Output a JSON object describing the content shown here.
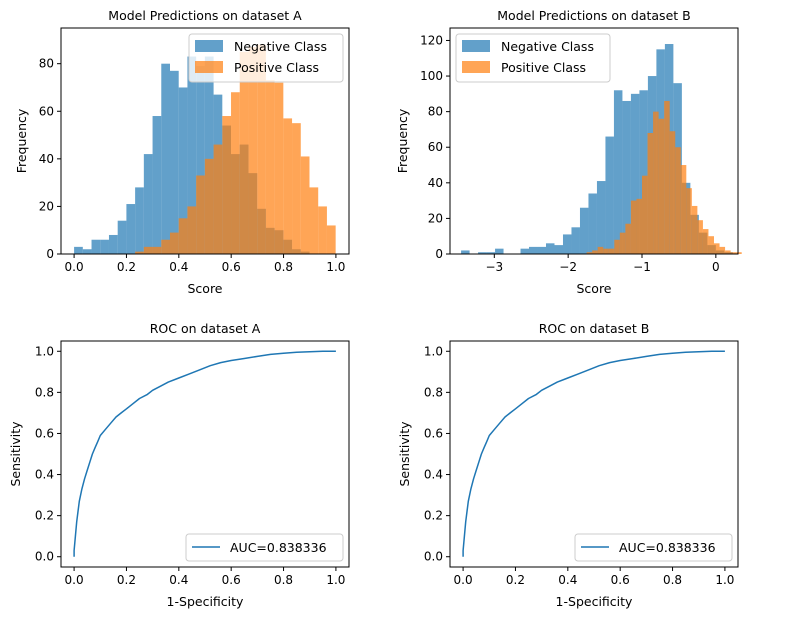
{
  "figure": {
    "background": "#ffffff"
  },
  "chart_data": [
    {
      "type": "bar",
      "title": "Model Predictions on dataset A",
      "xlabel": "Score",
      "ylabel": "Frequency",
      "xlim": [
        -0.05,
        1.05
      ],
      "ylim": [
        0,
        95
      ],
      "xticks": [
        0.0,
        0.2,
        0.4,
        0.6,
        0.8,
        1.0
      ],
      "xtick_labels": [
        "0.0",
        "0.2",
        "0.4",
        "0.6",
        "0.8",
        "1.0"
      ],
      "yticks": [
        0,
        20,
        40,
        60,
        80
      ],
      "ytick_labels": [
        "0",
        "20",
        "40",
        "60",
        "80"
      ],
      "legend_position": "top-right",
      "series": [
        {
          "name": "Negative Class",
          "color": "#1f77b4",
          "opacity": 0.7,
          "bin_start": 0.0,
          "bin_width": 0.0333,
          "values": [
            3,
            2,
            6,
            6,
            8,
            14,
            21,
            28,
            42,
            58,
            80,
            77,
            70,
            83,
            79,
            83,
            67,
            54,
            42,
            46,
            34,
            19,
            11,
            10,
            6,
            2,
            1,
            0,
            0,
            0
          ]
        },
        {
          "name": "Positive Class",
          "color": "#ff7f0e",
          "opacity": 0.7,
          "bin_start": 0.0,
          "bin_width": 0.0333,
          "values": [
            0,
            0,
            0,
            0,
            0,
            0,
            0,
            1,
            3,
            3,
            6,
            9,
            15,
            20,
            33,
            40,
            46,
            58,
            68,
            85,
            87,
            88,
            73,
            72,
            57,
            55,
            41,
            28,
            20,
            12
          ]
        },
        {
          "name": "Positive Class",
          "color": "#ff7f0e",
          "opacity": 0.7,
          "bin_start": 1.0,
          "bin_width": 0.0333,
          "values": []
        }
      ],
      "extra_series_note": ""
    },
    {
      "type": "bar",
      "title": "Model Predictions on dataset B",
      "xlabel": "Score",
      "ylabel": "Frequency",
      "xlim": [
        -3.6,
        0.3
      ],
      "ylim": [
        0,
        127
      ],
      "xticks": [
        -3,
        -2,
        -1,
        0
      ],
      "xtick_labels": [
        "−3",
        "−2",
        "−1",
        "0"
      ],
      "yticks": [
        0,
        20,
        40,
        60,
        80,
        100,
        120
      ],
      "ytick_labels": [
        "0",
        "20",
        "40",
        "60",
        "80",
        "100",
        "120"
      ],
      "legend_position": "top-left",
      "series": [
        {
          "name": "Negative Class",
          "color": "#1f77b4",
          "opacity": 0.7,
          "bin_start": -3.45,
          "bin_width": 0.115,
          "values": [
            2,
            0,
            1,
            1,
            3,
            0,
            0,
            3,
            4,
            4,
            6,
            5,
            11,
            15,
            26,
            34,
            41,
            66,
            92,
            86,
            90,
            92,
            100,
            115,
            118,
            96,
            40,
            22,
            12,
            5,
            2,
            1
          ]
        },
        {
          "name": "Positive Class",
          "color": "#ff7f0e",
          "opacity": 0.7,
          "bin_start": -1.75,
          "bin_width": 0.075,
          "values": [
            1,
            2,
            4,
            3,
            3,
            8,
            12,
            17,
            30,
            31,
            44,
            68,
            80,
            76,
            86,
            69,
            60,
            50,
            37,
            27,
            19,
            14,
            10,
            6,
            4,
            2,
            1,
            1
          ]
        }
      ]
    },
    {
      "type": "line",
      "title": "ROC on dataset A",
      "xlabel": "1-Specificity",
      "ylabel": "Sensitivity",
      "xlim": [
        -0.05,
        1.05
      ],
      "ylim": [
        -0.05,
        1.05
      ],
      "xticks": [
        0.0,
        0.2,
        0.4,
        0.6,
        0.8,
        1.0
      ],
      "xtick_labels": [
        "0.0",
        "0.2",
        "0.4",
        "0.6",
        "0.8",
        "1.0"
      ],
      "yticks": [
        0.0,
        0.2,
        0.4,
        0.6,
        0.8,
        1.0
      ],
      "ytick_labels": [
        "0.0",
        "0.2",
        "0.4",
        "0.6",
        "0.8",
        "1.0"
      ],
      "legend_position": "bottom-right",
      "series": [
        {
          "name": "AUC=0.838336",
          "color": "#1f77b4",
          "x": [
            0.0,
            0.0,
            0.005,
            0.01,
            0.015,
            0.02,
            0.03,
            0.04,
            0.05,
            0.06,
            0.07,
            0.08,
            0.09,
            0.1,
            0.12,
            0.14,
            0.16,
            0.18,
            0.2,
            0.22,
            0.25,
            0.28,
            0.3,
            0.33,
            0.36,
            0.4,
            0.44,
            0.48,
            0.52,
            0.56,
            0.6,
            0.65,
            0.7,
            0.75,
            0.8,
            0.85,
            0.9,
            0.95,
            1.0
          ],
          "y": [
            0.0,
            0.03,
            0.1,
            0.17,
            0.22,
            0.27,
            0.33,
            0.38,
            0.42,
            0.46,
            0.5,
            0.53,
            0.56,
            0.59,
            0.62,
            0.65,
            0.68,
            0.7,
            0.72,
            0.74,
            0.77,
            0.79,
            0.81,
            0.83,
            0.85,
            0.87,
            0.89,
            0.91,
            0.93,
            0.945,
            0.955,
            0.965,
            0.975,
            0.985,
            0.99,
            0.995,
            0.998,
            1.0,
            1.0
          ]
        }
      ]
    },
    {
      "type": "line",
      "title": "ROC on dataset B",
      "xlabel": "1-Specificity",
      "ylabel": "Sensitivity",
      "xlim": [
        -0.05,
        1.05
      ],
      "ylim": [
        -0.05,
        1.05
      ],
      "xticks": [
        0.0,
        0.2,
        0.4,
        0.6,
        0.8,
        1.0
      ],
      "xtick_labels": [
        "0.0",
        "0.2",
        "0.4",
        "0.6",
        "0.8",
        "1.0"
      ],
      "yticks": [
        0.0,
        0.2,
        0.4,
        0.6,
        0.8,
        1.0
      ],
      "ytick_labels": [
        "0.0",
        "0.2",
        "0.4",
        "0.6",
        "0.8",
        "1.0"
      ],
      "legend_position": "bottom-right",
      "series": [
        {
          "name": "AUC=0.838336",
          "color": "#1f77b4",
          "x": [
            0.0,
            0.0,
            0.005,
            0.01,
            0.015,
            0.02,
            0.03,
            0.04,
            0.05,
            0.06,
            0.07,
            0.08,
            0.09,
            0.1,
            0.12,
            0.14,
            0.16,
            0.18,
            0.2,
            0.22,
            0.25,
            0.28,
            0.3,
            0.33,
            0.36,
            0.4,
            0.44,
            0.48,
            0.52,
            0.56,
            0.6,
            0.65,
            0.7,
            0.75,
            0.8,
            0.85,
            0.9,
            0.95,
            1.0
          ],
          "y": [
            0.0,
            0.03,
            0.1,
            0.17,
            0.22,
            0.27,
            0.33,
            0.38,
            0.42,
            0.46,
            0.5,
            0.53,
            0.56,
            0.59,
            0.62,
            0.65,
            0.68,
            0.7,
            0.72,
            0.74,
            0.77,
            0.79,
            0.81,
            0.83,
            0.85,
            0.87,
            0.89,
            0.91,
            0.93,
            0.945,
            0.955,
            0.965,
            0.975,
            0.985,
            0.99,
            0.995,
            0.998,
            1.0,
            1.0
          ]
        }
      ]
    }
  ]
}
